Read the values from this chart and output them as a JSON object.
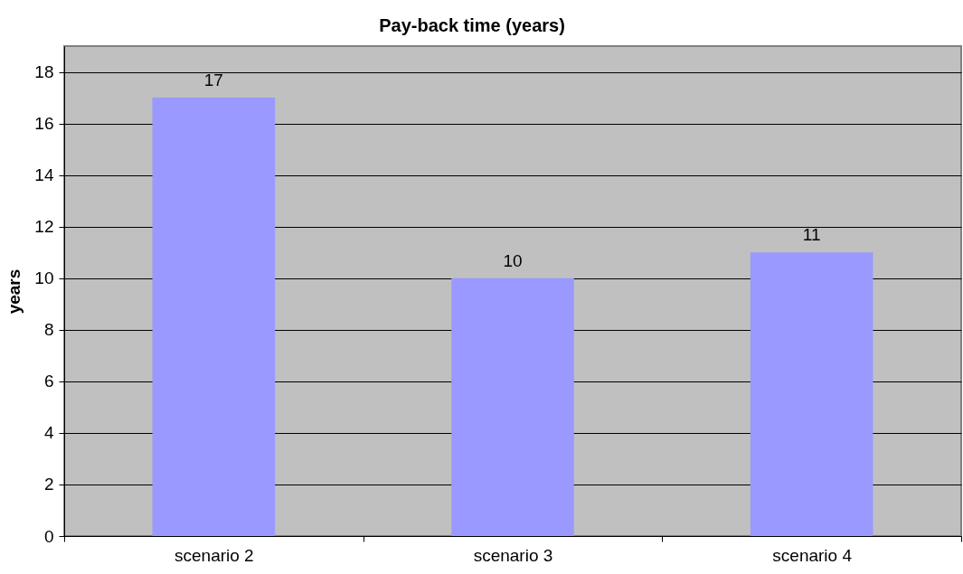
{
  "chart_data": {
    "type": "bar",
    "title": "Pay-back time (years)",
    "ylabel": "years",
    "categories": [
      "scenario 2",
      "scenario 3",
      "scenario 4"
    ],
    "values": [
      17,
      10,
      11
    ],
    "color": "#9999ff",
    "ylim": [
      0,
      19
    ],
    "yticks": [
      0,
      2,
      4,
      6,
      8,
      10,
      12,
      14,
      16,
      18
    ],
    "grid": "y",
    "data_labels": true
  }
}
